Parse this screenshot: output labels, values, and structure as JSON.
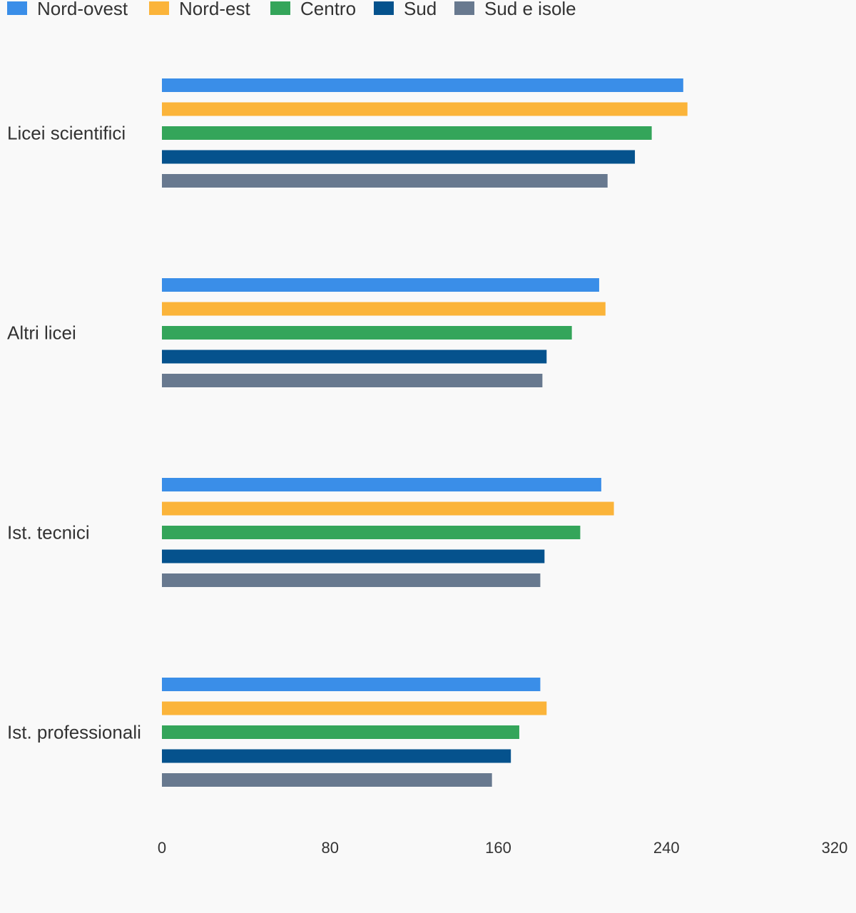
{
  "chart_data": {
    "type": "bar",
    "orientation": "horizontal",
    "title": "",
    "xlabel": "",
    "ylabel": "",
    "xlim": [
      0,
      320
    ],
    "x_ticks": [
      0,
      80,
      160,
      240,
      320
    ],
    "grid": false,
    "legend_position": "top-left",
    "categories": [
      "Licei scientifici",
      "Altri licei",
      "Ist. tecnici",
      "Ist. professionali"
    ],
    "series": [
      {
        "name": "Nord-ovest",
        "color": "#3a8ee8",
        "values": [
          248,
          208,
          209,
          180
        ]
      },
      {
        "name": "Nord-est",
        "color": "#fbb43a",
        "values": [
          250,
          211,
          215,
          183
        ]
      },
      {
        "name": "Centro",
        "color": "#34a55a",
        "values": [
          233,
          195,
          199,
          170
        ]
      },
      {
        "name": "Sud",
        "color": "#05528d",
        "values": [
          225,
          183,
          182,
          166
        ]
      },
      {
        "name": "Sud e isole",
        "color": "#68798f",
        "values": [
          212,
          181,
          180,
          157
        ]
      }
    ]
  }
}
